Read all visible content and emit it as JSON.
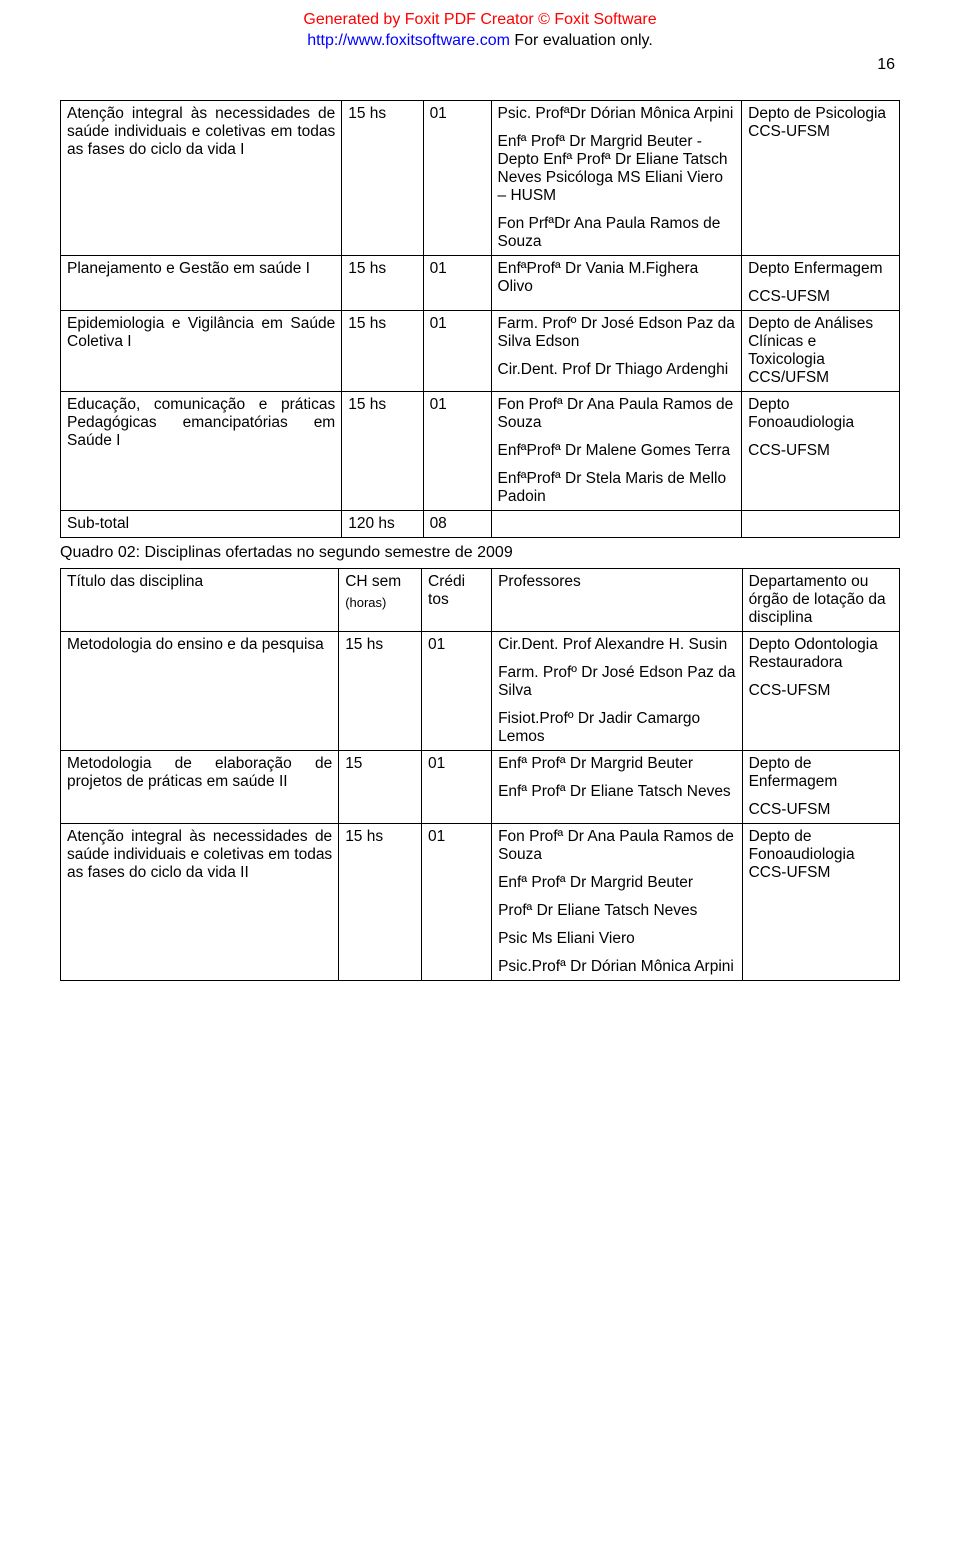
{
  "watermark": {
    "line1": "Generated by Foxit PDF Creator © Foxit Software",
    "line2_link": "http://www.foxitsoftware.com",
    "line2_rest": "   For evaluation only."
  },
  "page_number": "16",
  "table1": {
    "rows": [
      {
        "c1": "Atenção integral às necessidades de saúde individuais e coletivas em todas as fases do ciclo da vida I",
        "c2": "15 hs",
        "c3": "01",
        "c4": [
          "Psic. ProfªDr Dórian Mônica Arpini",
          "Enfª Profª Dr Margrid Beuter - Depto Enfª Profª Dr Eliane Tatsch Neves Psicóloga MS Eliani Viero – HUSM",
          "Fon PrfªDr Ana Paula Ramos de Souza"
        ],
        "c5": [
          "Depto de Psicologia CCS-UFSM"
        ]
      },
      {
        "c1": "Planejamento e Gestão em saúde I",
        "c2": "15 hs",
        "c3": "01",
        "c4": [
          "EnfªProfª Dr Vania M.Fighera Olivo"
        ],
        "c5": [
          "Depto Enfermagem",
          "CCS-UFSM"
        ]
      },
      {
        "c1": "Epidemiologia e Vigilância em Saúde Coletiva  I",
        "c2": "15 hs",
        "c3": "01",
        "c4": [
          "Farm. Profº Dr José Edson Paz da Silva Edson",
          "Cir.Dent. Prof Dr Thiago Ardenghi"
        ],
        "c5": [
          "Depto de Análises Clínicas e Toxicologia CCS/UFSM"
        ]
      },
      {
        "c1": "Educação, comunicação e práticas Pedagógicas emancipatórias em Saúde I",
        "c2": "15 hs",
        "c3": "01",
        "c4": [
          "Fon Profª Dr Ana Paula Ramos de Souza",
          "EnfªProfª Dr Malene Gomes Terra",
          "EnfªProfª Dr Stela Maris de Mello Padoin"
        ],
        "c5": [
          "Depto Fonoaudiologia",
          "CCS-UFSM"
        ]
      },
      {
        "c1": "Sub-total",
        "c2": "120 hs",
        "c3": "08",
        "c4": [],
        "c5": []
      }
    ]
  },
  "caption": "Quadro 02: Disciplinas ofertadas no segundo semestre de 2009",
  "table2": {
    "header": {
      "c1": "Título das disciplina",
      "c2a": "CH sem",
      "c2b": "(horas)",
      "c3": "Crédi tos",
      "c4": "Professores",
      "c5": "Departamento ou órgão de lotação da disciplina"
    },
    "rows": [
      {
        "c1": "Metodologia do ensino e da pesquisa",
        "c2": "15 hs",
        "c3": "01",
        "c4": [
          "Cir.Dent. Prof Alexandre H. Susin",
          "Farm. Profº Dr José Edson Paz da Silva",
          "Fisiot.Profº Dr Jadir Camargo Lemos"
        ],
        "c5": [
          "Depto Odontologia Restauradora",
          "CCS-UFSM"
        ]
      },
      {
        "c1": "Metodologia de elaboração de projetos de práticas em saúde II",
        "c2": "15",
        "c3": "01",
        "c4": [
          "Enfª Profª Dr Margrid Beuter",
          "Enfª Profª Dr Eliane Tatsch Neves"
        ],
        "c5": [
          "Depto de Enfermagem",
          "CCS-UFSM"
        ]
      },
      {
        "c1": "Atenção integral às necessidades de saúde individuais e coletivas em todas as fases do ciclo da vida II",
        "c2": "15 hs",
        "c3": "01",
        "c4": [
          "Fon Profª Dr Ana Paula Ramos de Souza",
          "Enfª Profª Dr Margrid Beuter",
          "Profª Dr Eliane Tatsch Neves",
          "Psic Ms Eliani Viero",
          "Psic.Profª Dr Dórian Mônica Arpini"
        ],
        "c5": [
          "Depto de Fonoaudiologia CCS-UFSM"
        ]
      }
    ]
  }
}
